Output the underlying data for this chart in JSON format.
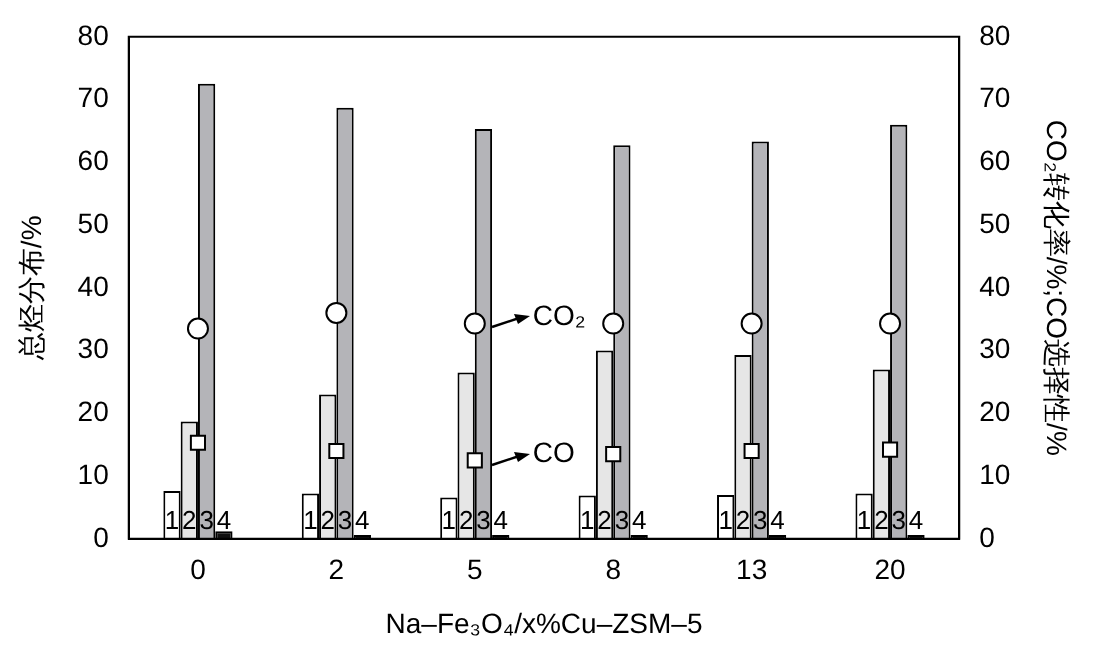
{
  "chart_data": {
    "type": "bar",
    "xlabel": "Na–Fe₃O₄/x%Cu–ZSM–5",
    "ylabel": "总烃分布/%",
    "y2label": "CO₂转化率/%;CO选择性/%",
    "categories": [
      "0",
      "2",
      "5",
      "8",
      "13",
      "20"
    ],
    "series": [
      {
        "name": "1",
        "color": "#ffffff",
        "values": [
          7.6,
          7.2,
          6.6,
          6.9,
          7.0,
          7.2
        ]
      },
      {
        "name": "2",
        "color": "#e6e6e6",
        "values": [
          18.7,
          23.0,
          26.5,
          30.0,
          29.3,
          27.0
        ]
      },
      {
        "name": "3",
        "color": "#b4b4b8",
        "values": [
          72.5,
          68.7,
          65.3,
          62.7,
          63.3,
          66.0
        ]
      },
      {
        "name": "4",
        "color": "#111111",
        "values": [
          1.2,
          0.6,
          0.6,
          0.6,
          0.6,
          0.6
        ]
      },
      {
        "type": "scatter",
        "axis": "y2",
        "marker": "circle",
        "color": "#ffffff",
        "x": [
          "0",
          "2",
          "5",
          "8",
          "13",
          "20"
        ],
        "values": [
          33.5,
          36.0,
          34.3,
          34.3,
          34.3,
          34.3
        ]
      },
      {
        "type": "scatter",
        "axis": "y2",
        "marker": "square",
        "color": "#ffffff",
        "x": [
          "0",
          "2",
          "5",
          "8",
          "13",
          "20"
        ],
        "values": [
          15.3,
          14.0,
          12.5,
          13.5,
          14.0,
          14.2
        ]
      }
    ],
    "ylim": [
      0,
      80
    ],
    "yticks": [
      0,
      10,
      20,
      30,
      40,
      50,
      60,
      70,
      80
    ],
    "y2lim": [
      0,
      80
    ],
    "y2ticks": [
      0,
      10,
      20,
      30,
      40,
      50,
      60,
      70,
      80
    ],
    "annotations": [
      {
        "text": "CO₂",
        "x": "5",
        "y": 34.3
      },
      {
        "text": "CO",
        "x": "5",
        "y": 12.5
      }
    ],
    "grid": false,
    "legend": false
  }
}
